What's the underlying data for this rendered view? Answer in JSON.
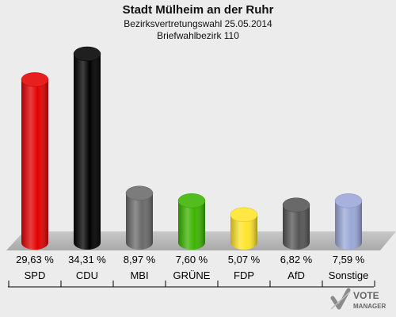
{
  "chart_data": {
    "type": "bar",
    "title": "Stadt Mülheim an der Ruhr",
    "subtitle_1": "Bezirksvertretungswahl 25.05.2014",
    "subtitle_2": "Briefwahlbezirk 110",
    "categories": [
      "SPD",
      "CDU",
      "MBI",
      "GRÜNE",
      "FDP",
      "AfD",
      "Sonstige"
    ],
    "values": [
      29.63,
      34.31,
      8.97,
      7.6,
      5.07,
      6.82,
      7.59
    ],
    "value_labels": [
      "29,63 %",
      "34,31 %",
      "8,97 %",
      "7,60 %",
      "5,07 %",
      "6,82 %",
      "7,59 %"
    ],
    "colors": [
      "#e30000",
      "#000000",
      "#6a6a6a",
      "#3cb400",
      "#ffe52a",
      "#555555",
      "#9aa8d8"
    ],
    "xlabel": "",
    "ylabel": "",
    "ylim": [
      0,
      34.31
    ],
    "grid": false,
    "legend": "none"
  },
  "logo": {
    "line1": "VOTE",
    "line2": "MANAGER"
  }
}
